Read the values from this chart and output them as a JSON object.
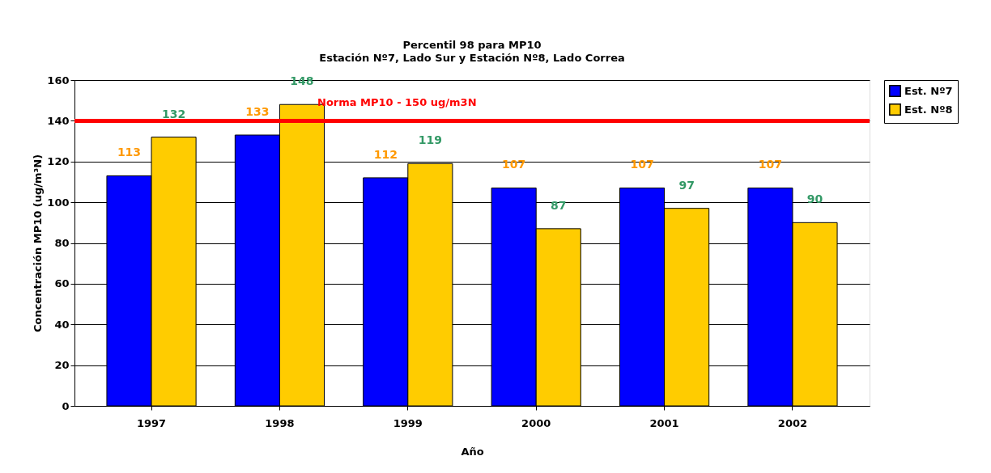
{
  "chart_data": {
    "type": "bar",
    "title": "Percentil 98 para MP10",
    "subtitle": "Estación Nº7, Lado Sur y Estación Nº8, Lado Correa",
    "xlabel": "Año",
    "ylabel": "Concentración MP10 (ug/m³N)",
    "categories": [
      "1997",
      "1998",
      "1999",
      "2000",
      "2001",
      "2002"
    ],
    "series": [
      {
        "name": "Est. Nº7",
        "color": "#0000ff",
        "values": [
          113,
          133,
          112,
          107,
          107,
          107
        ]
      },
      {
        "name": "Est. Nº8",
        "color": "#ffcc00",
        "values": [
          132,
          148,
          119,
          87,
          97,
          90
        ]
      }
    ],
    "ylim": [
      0,
      160
    ],
    "yticks": [
      0,
      20,
      40,
      60,
      80,
      100,
      120,
      140,
      160
    ],
    "grid": "y",
    "legend": "right",
    "data_labels": true,
    "ref_lines": [
      {
        "axis": "y",
        "value": 140,
        "label": "Norma  MP10 - 150 ug/m3N",
        "color": "#ff0000",
        "line_style": "solid"
      }
    ]
  }
}
